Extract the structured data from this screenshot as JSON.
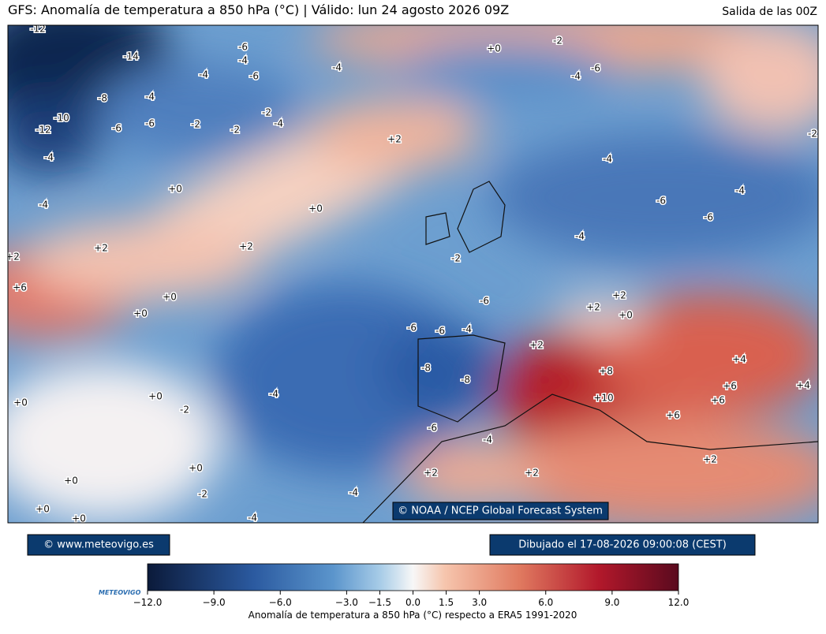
{
  "header": {
    "title": "GFS: Anomalía de temperatura a 850 hPa (°C) | Válido: lun 24 agosto 2026 09Z",
    "run": "Salida de las 00Z"
  },
  "map": {
    "credit": "© NOAA / NCEP Global Forecast System",
    "contour_labels": [
      "-12",
      "-14",
      "-6",
      "-4",
      "-6",
      "-4",
      "-8",
      "-4",
      "-10",
      "-12",
      "-6",
      "-6",
      "-2",
      "-2",
      "-2",
      "-4",
      "-4",
      "-4",
      "+0",
      "-2",
      "-4",
      "-6",
      "+2",
      "+0",
      "-4",
      "+0",
      "+2",
      "+2",
      "+2",
      "+6",
      "+0",
      "+0",
      "-2",
      "-4",
      "-4",
      "-6",
      "-6",
      "-4",
      "-2",
      "-6",
      "-6",
      "-6",
      "-4",
      "-8",
      "-8",
      "+2",
      "+2",
      "+0",
      "+2",
      "+8",
      "+10",
      "+6",
      "+4",
      "+6",
      "+6",
      "+4",
      "+0",
      "-2",
      "-4",
      "+0",
      "-6",
      "-4",
      "+2",
      "+2",
      "+2",
      "+0",
      "+0",
      "-2",
      "+0",
      "+0",
      "-4",
      "-4"
    ]
  },
  "footer": {
    "site": "© www.meteovigo.es",
    "drawn": "Dibujado el 17-08-2026 09:00:08 (CEST)",
    "logo": "METEOVIGO"
  },
  "colorbar": {
    "label": "Anomalía de temperatura a 850 hPa (°C) respecto a ERA5 1991-2020",
    "range": [
      -12,
      12
    ],
    "ticks": [
      {
        "value": -12,
        "label": "−12.0"
      },
      {
        "value": -9,
        "label": "−9.0"
      },
      {
        "value": -6,
        "label": "−6.0"
      },
      {
        "value": -3,
        "label": "−3.0"
      },
      {
        "value": -1.5,
        "label": "−1.5"
      },
      {
        "value": 0,
        "label": "0.0"
      },
      {
        "value": 1.5,
        "label": "1.5"
      },
      {
        "value": 3,
        "label": "3.0"
      },
      {
        "value": 6,
        "label": "6.0"
      },
      {
        "value": 9,
        "label": "9.0"
      },
      {
        "value": 12,
        "label": "12.0"
      }
    ]
  }
}
